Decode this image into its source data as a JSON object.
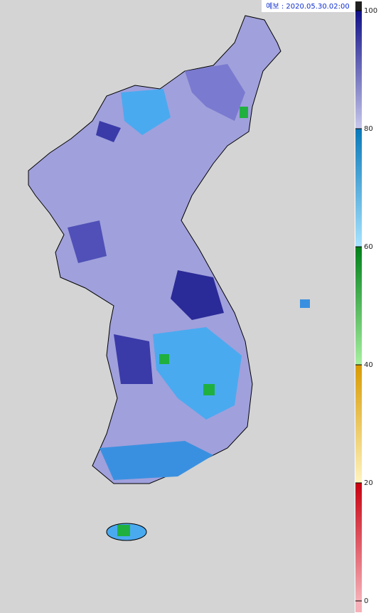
{
  "header": {
    "label": "예보 : 2020.05.30.02:00"
  },
  "legend": {
    "range": [
      0,
      100
    ],
    "ticks": [
      0,
      20,
      40,
      60,
      80,
      100
    ],
    "segments": [
      {
        "colors": [
          "#f6b0b8",
          "#c80010"
        ]
      },
      {
        "colors": [
          "#fff4c0",
          "#d89a00"
        ]
      },
      {
        "colors": [
          "#a8f0a0",
          "#00801a"
        ]
      },
      {
        "colors": [
          "#a8e4ff",
          "#0878b8"
        ]
      },
      {
        "colors": [
          "#c8c8ec",
          "#101088"
        ]
      }
    ],
    "top_color": "#202020"
  }
}
